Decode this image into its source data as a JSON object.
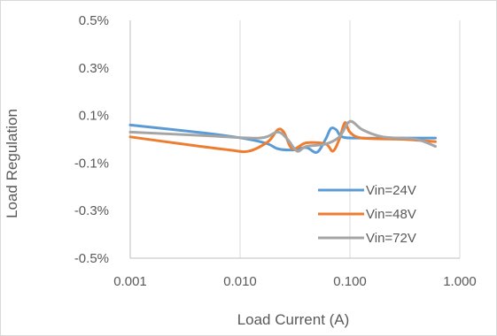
{
  "chart_data": {
    "type": "line",
    "title": "",
    "xlabel": "Load Current (A)",
    "ylabel": "Load Regulation",
    "x_scale": "log",
    "xlim": [
      0.001,
      1.0
    ],
    "ylim": [
      -0.5,
      0.5
    ],
    "x_ticks": [
      0.001,
      0.01,
      0.1,
      1.0
    ],
    "x_tick_labels": [
      "0.001",
      "0.010",
      "0.100",
      "1.000"
    ],
    "y_ticks": [
      0.5,
      0.3,
      0.1,
      -0.1,
      -0.3,
      -0.5
    ],
    "y_tick_labels": [
      "0.5%",
      "0.3%",
      "0.1%",
      "-0.1%",
      "-0.3%",
      "-0.5%"
    ],
    "grid": {
      "x": true,
      "y": false
    },
    "legend": {
      "position": "right"
    },
    "series": [
      {
        "name": "Vin=24V",
        "color": "#5b9bd5",
        "points": [
          [
            0.001,
            0.06
          ],
          [
            0.005,
            0.025
          ],
          [
            0.012,
            0.0
          ],
          [
            0.018,
            -0.02
          ],
          [
            0.022,
            -0.04
          ],
          [
            0.03,
            -0.045
          ],
          [
            0.04,
            -0.035
          ],
          [
            0.05,
            -0.055
          ],
          [
            0.06,
            0.0
          ],
          [
            0.067,
            0.045
          ],
          [
            0.075,
            0.04
          ],
          [
            0.085,
            0.01
          ],
          [
            0.12,
            0.005
          ],
          [
            0.3,
            0.005
          ],
          [
            0.6,
            0.005
          ]
        ]
      },
      {
        "name": "Vin=48V",
        "color": "#ed7d31",
        "points": [
          [
            0.001,
            0.01
          ],
          [
            0.003,
            -0.02
          ],
          [
            0.008,
            -0.045
          ],
          [
            0.012,
            -0.05
          ],
          [
            0.018,
            -0.01
          ],
          [
            0.022,
            0.04
          ],
          [
            0.025,
            0.03
          ],
          [
            0.03,
            -0.04
          ],
          [
            0.04,
            -0.015
          ],
          [
            0.06,
            -0.02
          ],
          [
            0.07,
            -0.05
          ],
          [
            0.08,
            0.0
          ],
          [
            0.09,
            0.07
          ],
          [
            0.1,
            0.03
          ],
          [
            0.13,
            0.005
          ],
          [
            0.3,
            0.0
          ],
          [
            0.6,
            -0.01
          ]
        ]
      },
      {
        "name": "Vin=72V",
        "color": "#a5a5a5",
        "points": [
          [
            0.001,
            0.03
          ],
          [
            0.005,
            0.015
          ],
          [
            0.015,
            0.005
          ],
          [
            0.022,
            0.03
          ],
          [
            0.027,
            0.0
          ],
          [
            0.033,
            -0.05
          ],
          [
            0.04,
            -0.03
          ],
          [
            0.06,
            -0.02
          ],
          [
            0.08,
            0.01
          ],
          [
            0.1,
            0.075
          ],
          [
            0.13,
            0.04
          ],
          [
            0.2,
            0.01
          ],
          [
            0.4,
            0.0
          ],
          [
            0.6,
            -0.03
          ]
        ]
      }
    ]
  }
}
